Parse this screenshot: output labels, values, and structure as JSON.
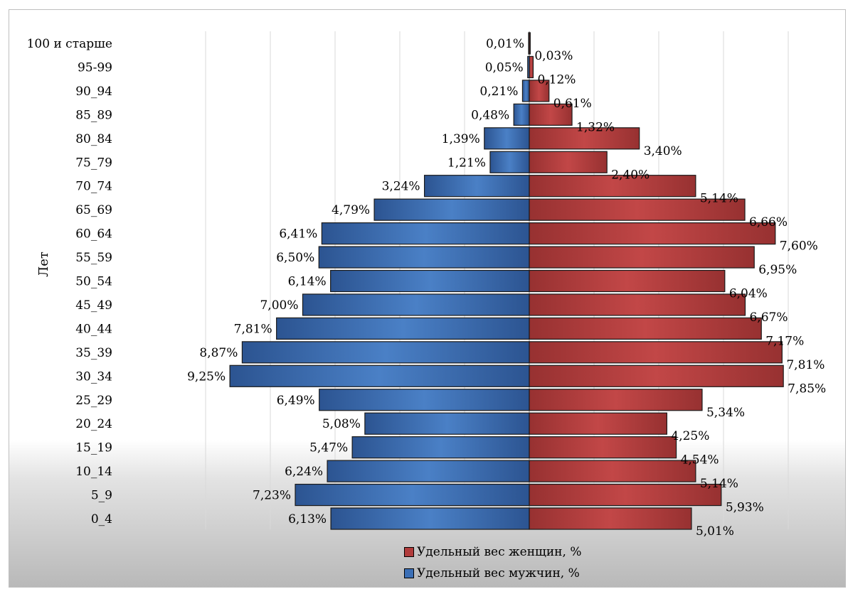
{
  "chart_data": {
    "type": "bar",
    "orientation": "horizontal",
    "layout": "population-pyramid",
    "title": "",
    "ylabel": "Лет",
    "categories": [
      "100 и старше",
      "95-99",
      "90_94",
      "85_89",
      "80_84",
      "75_79",
      "70_74",
      "65_69",
      "60_64",
      "55_59",
      "50_54",
      "45_49",
      "40_44",
      "35_39",
      "30_34",
      "25_29",
      "20_24",
      "15_19",
      "10_14",
      "5_9",
      "0_4"
    ],
    "series": [
      {
        "name": "Удельный вес мужчин, %",
        "side": "left",
        "color": "#3b6fb6",
        "values": [
          0.01,
          0.05,
          0.21,
          0.48,
          1.39,
          1.21,
          3.24,
          4.79,
          6.41,
          6.5,
          6.14,
          7.0,
          7.81,
          8.87,
          9.25,
          6.49,
          5.08,
          5.47,
          6.24,
          7.23,
          6.13
        ],
        "labels": [
          "0,01%",
          "0,05%",
          "0,21%",
          "0,48%",
          "1,39%",
          "1,21%",
          "3,24%",
          "4,79%",
          "6,41%",
          "6,50%",
          "6,14%",
          "7,00%",
          "7,81%",
          "8,87%",
          "9,25%",
          "6,49%",
          "5,08%",
          "5,47%",
          "6,24%",
          "7,23%",
          "6,13%"
        ]
      },
      {
        "name": "Удельный вес женщин, %",
        "side": "right",
        "color": "#b13c3c",
        "values": [
          0.03,
          0.12,
          0.61,
          1.32,
          3.4,
          2.4,
          5.14,
          6.66,
          7.6,
          6.95,
          6.04,
          6.67,
          7.17,
          7.81,
          7.85,
          5.34,
          4.25,
          4.54,
          5.14,
          5.93,
          5.01
        ],
        "labels": [
          "0,03%",
          "0,12%",
          "0,61%",
          "1,32%",
          "3,40%",
          "2,40%",
          "5,14%",
          "6,66%",
          "7,60%",
          "6,95%",
          "6,04%",
          "6,67%",
          "7,17%",
          "7,81%",
          "7,85%",
          "5,34%",
          "4,25%",
          "4,54%",
          "5,14%",
          "5,93%",
          "5,01%"
        ]
      }
    ],
    "xlim": [
      -10,
      10
    ],
    "grid": true,
    "legend_position": "bottom"
  },
  "legend": {
    "women_label": "Удельный вес женщин, %",
    "men_label": "Удельный вес мужчин, %"
  }
}
